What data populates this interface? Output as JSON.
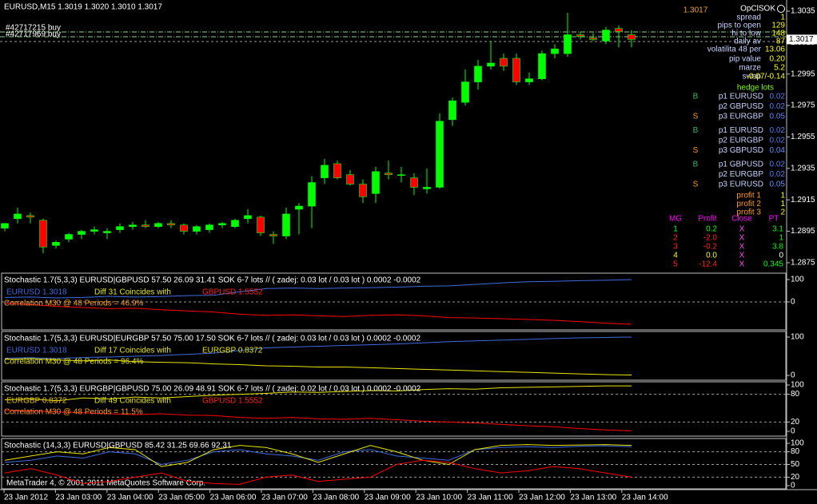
{
  "header": {
    "symbol_line": "EURUSD,M15  1.3019 1.3020 1.3010 1.3017",
    "orders": [
      "#42717215 buy",
      "#42717969 buy"
    ]
  },
  "price": {
    "current": 1.3017,
    "ylim": [
      1.28704,
      1.30421
    ],
    "ticks": [
      1.3035,
      1.3015,
      1.2995,
      1.2975,
      1.2955,
      1.2935,
      1.2915,
      1.2895,
      1.2875
    ]
  },
  "candles": {
    "up_color": "#00ff00",
    "down_color": "#ff0000",
    "open": [
      1.2897,
      1.2903,
      1.2905,
      1.2902,
      1.2886,
      1.289,
      1.2893,
      1.2895,
      1.2894,
      1.2896,
      1.2898,
      1.2899,
      1.2898,
      1.29,
      1.2899,
      1.2895,
      1.2896,
      1.2899,
      1.2898,
      1.2903,
      1.2904,
      1.2893,
      1.2892,
      1.2909,
      1.2911,
      1.2929,
      1.2938,
      1.2931,
      1.2925,
      1.2919,
      1.2932,
      1.2931,
      1.2929,
      1.2922,
      1.2923,
      1.2966,
      1.2977,
      1.299,
      1.3,
      1.3005,
      1.3005,
      1.299,
      1.2992,
      1.3008,
      1.3008,
      1.302,
      1.3018,
      1.3016,
      1.3024,
      1.302
    ],
    "high": [
      1.29,
      1.291,
      1.2907,
      1.2903,
      1.2889,
      1.2894,
      1.2896,
      1.2898,
      1.2897,
      1.29,
      1.2901,
      1.2902,
      1.2901,
      1.2902,
      1.29,
      1.2899,
      1.29,
      1.2901,
      1.2903,
      1.2909,
      1.2905,
      1.2895,
      1.291,
      1.2913,
      1.293,
      1.2941,
      1.294,
      1.2934,
      1.2928,
      1.2936,
      1.294,
      1.2936,
      1.2932,
      1.2935,
      1.297,
      1.298,
      1.2998,
      1.3004,
      1.3016,
      1.3008,
      1.3008,
      1.2996,
      1.301,
      1.3014,
      1.3034,
      1.3022,
      1.3021,
      1.3025,
      1.3026,
      1.3023
    ],
    "low": [
      1.2895,
      1.29,
      1.29,
      1.2881,
      1.2884,
      1.2888,
      1.289,
      1.2893,
      1.289,
      1.2894,
      1.2896,
      1.2897,
      1.2897,
      1.2897,
      1.2893,
      1.2893,
      1.2894,
      1.2897,
      1.2897,
      1.29,
      1.2892,
      1.2887,
      1.289,
      1.2893,
      1.2897,
      1.2925,
      1.2928,
      1.2924,
      1.2913,
      1.2913,
      1.2928,
      1.2926,
      1.2918,
      1.2919,
      1.2922,
      1.2962,
      1.2975,
      1.2985,
      1.2998,
      1.2997,
      1.2988,
      1.2988,
      1.2991,
      1.3005,
      1.3006,
      1.3017,
      1.3016,
      1.3014,
      1.3012,
      1.3012
    ],
    "close": [
      1.29,
      1.2906,
      1.2904,
      1.2885,
      1.2888,
      1.2893,
      1.2895,
      1.2896,
      1.2895,
      1.2898,
      1.2899,
      1.2898,
      1.29,
      1.2899,
      1.2895,
      1.2898,
      1.2899,
      1.29,
      1.2902,
      1.2905,
      1.2894,
      1.2892,
      1.2906,
      1.2911,
      1.2926,
      1.2937,
      1.2929,
      1.2925,
      1.2917,
      1.2933,
      1.2931,
      1.2931,
      1.2923,
      1.2923,
      1.2965,
      1.2978,
      1.299,
      1.3,
      1.3002,
      1.3,
      1.299,
      1.2992,
      1.3008,
      1.3011,
      1.302,
      1.3019,
      1.3017,
      1.3023,
      1.3022,
      1.3017
    ]
  },
  "info": {
    "title": "OpClSOK",
    "rows": [
      {
        "label": "spread",
        "value": "1"
      },
      {
        "label": "pips to open",
        "value": "129"
      },
      {
        "label": "hi to low",
        "value": "148"
      },
      {
        "label": "daily av",
        "value": "87"
      },
      {
        "label": "volatilita 48 per",
        "value": "13.06"
      },
      {
        "label": "pip value",
        "value": "0.20"
      },
      {
        "label": "marze",
        "value": "5.2"
      },
      {
        "label": "swap",
        "value": "-0.07/-0.14"
      }
    ],
    "hedge": {
      "title": "hedge lots",
      "groups": [
        {
          "buy": "B",
          "sell": "S",
          "rows": [
            {
              "pair": "p1 EURUSD",
              "lots": "0.02"
            },
            {
              "pair": "p2 GBPUSD",
              "lots": "0.02"
            },
            {
              "pair": "p3 EURGBP",
              "lots": "0.05"
            }
          ]
        },
        {
          "buy": "B",
          "sell": "S",
          "rows": [
            {
              "pair": "p1 EURUSD",
              "lots": "0.02"
            },
            {
              "pair": "p2 EURGBP",
              "lots": "0.02"
            },
            {
              "pair": "p3 GBPUSD",
              "lots": "0.04"
            }
          ]
        },
        {
          "buy": "B",
          "sell": "S",
          "rows": [
            {
              "pair": "p1 GBPUSD",
              "lots": "0.02"
            },
            {
              "pair": "p2 EURGBP",
              "lots": "0.02"
            },
            {
              "pair": "p3 EURUSD",
              "lots": "0.05"
            }
          ]
        }
      ]
    },
    "profits": [
      {
        "label": "profit 1",
        "value": "1"
      },
      {
        "label": "profit 2",
        "value": "1"
      },
      {
        "label": "profit 3",
        "value": "2"
      }
    ],
    "mg": {
      "header": [
        "MG",
        "Profit",
        "Close",
        "PT"
      ],
      "rows": [
        [
          "1",
          "0.2",
          "X",
          "3.1"
        ],
        [
          "2",
          "-2.0",
          "X",
          "1"
        ],
        [
          "3",
          "-0.2",
          "X",
          "3.8"
        ],
        [
          "4",
          "0.0",
          "X",
          "0"
        ],
        [
          "5",
          "-12.4",
          "X",
          "0.345"
        ]
      ]
    }
  },
  "panels": [
    {
      "title": "Stochastic 1.7(5,3,3) EURUSD|GBPUSD 57.50 26.09 31.41  SOK 6-7 lots  //  ( zadej: 0.03 lot / 0.03 lot ) 0.0002 -0.0002",
      "legend": [
        {
          "text": "EURUSD 1.3018",
          "color": "#4169e1"
        },
        {
          "text": "Diff 31 Coincides with",
          "color": "#e6e600"
        },
        {
          "text": "GBPUSD 1.5552",
          "color": "#ff2020"
        }
      ],
      "correlation": {
        "text": "Correlation M30 @ 48 Periods = 46.9%",
        "color": "#ff9c1a"
      },
      "ylim": [
        -100,
        100
      ],
      "yticks": [
        100,
        0
      ],
      "series": [
        {
          "color": "#4169e1",
          "values": [
            20,
            22,
            18,
            20,
            25,
            22,
            24,
            28,
            30,
            45,
            60,
            62,
            60,
            62,
            64,
            66,
            70,
            72,
            78,
            85,
            90,
            92,
            95,
            97,
            100
          ]
        },
        {
          "color": "#ff0000",
          "values": [
            -5,
            -12,
            -20,
            -25,
            -30,
            -28,
            -35,
            -40,
            -45,
            -55,
            -60,
            -58,
            -62,
            -65,
            -60,
            -58,
            -62,
            -70,
            -72,
            -75,
            -78,
            -82,
            -88,
            -95,
            -100
          ]
        }
      ]
    },
    {
      "title": "Stochastic 1.7(5,3,3) EURUSD|EURGBP 57.50 75.00 17.50  SOK 6-7 lots  //  ( zadej: 0.03 lot / 0.03 lot ) 0.0002 -0.0002",
      "legend": [
        {
          "text": "EURUSD 1.3018",
          "color": "#4169e1"
        },
        {
          "text": "Diff 17 Coincides with",
          "color": "#e6e600"
        },
        {
          "text": "EURGBP 0.8372",
          "color": "#e6e600"
        }
      ],
      "correlation": {
        "text": "Correlation M30 @ 48 Periods = 96.4%",
        "color": "#e6e600"
      },
      "ylim": [
        0,
        100
      ],
      "yticks": [
        100,
        0
      ],
      "series": [
        {
          "color": "#4169e1",
          "values": [
            45,
            46,
            44,
            47,
            48,
            50,
            52,
            55,
            58,
            65,
            72,
            74,
            76,
            78,
            80,
            82,
            85,
            88,
            90,
            92,
            94,
            96,
            98,
            99,
            100
          ]
        },
        {
          "color": "#e6e600",
          "values": [
            42,
            44,
            40,
            38,
            40,
            36,
            34,
            33,
            30,
            28,
            25,
            24,
            22,
            22,
            20,
            18,
            16,
            14,
            12,
            10,
            8,
            6,
            4,
            2,
            1
          ]
        }
      ]
    },
    {
      "title": "Stochastic 1.7(5,3,3) EURGBP|GBPUSD 75.00 26.09 48.91  SOK 6-7 lots  //  ( zadej: 0.02 lot / 0.03 lot ) 0.0002 -0.0002",
      "legend": [
        {
          "text": "EURGBP 0.8372",
          "color": "#e6c200"
        },
        {
          "text": "Diff 49 Coincides with",
          "color": "#e6e600"
        },
        {
          "text": "GBPUSD 1.5552",
          "color": "#ff2020"
        }
      ],
      "correlation": {
        "text": "Correlation M30 @ 48 Periods = 11.5%",
        "color": "#ff9c1a"
      },
      "ylim": [
        0,
        100
      ],
      "yticks": [
        100,
        80,
        20,
        0
      ],
      "series": [
        {
          "color": "#e6e600",
          "values": [
            68,
            70,
            66,
            72,
            70,
            74,
            72,
            75,
            78,
            80,
            82,
            85,
            84,
            86,
            88,
            87,
            90,
            92,
            91,
            94,
            95,
            96,
            97,
            98,
            98
          ]
        },
        {
          "color": "#ff0000",
          "values": [
            45,
            44,
            42,
            40,
            38,
            36,
            38,
            35,
            34,
            30,
            28,
            30,
            27,
            26,
            28,
            25,
            22,
            20,
            18,
            15,
            12,
            10,
            6,
            3,
            1
          ]
        }
      ]
    },
    {
      "title": "Stochastic (14,3,3) EURUSD|GBPUSD 85.42 31.25 69.66 92.31",
      "footer": "MetaTrader 4, © 2001-2011 MetaQuotes Software Corp.",
      "ylim": [
        0,
        100
      ],
      "yticks": [
        100,
        80,
        50,
        20,
        0
      ],
      "series": [
        {
          "color": "#4169e1",
          "values": [
            55,
            60,
            70,
            65,
            80,
            75,
            50,
            60,
            80,
            85,
            75,
            70,
            60,
            80,
            85,
            70,
            65,
            60,
            85,
            90,
            92,
            90,
            93,
            94,
            92
          ]
        },
        {
          "color": "#e6e600",
          "values": [
            60,
            70,
            80,
            75,
            90,
            85,
            45,
            55,
            85,
            95,
            90,
            75,
            55,
            75,
            95,
            80,
            60,
            50,
            85,
            95,
            97,
            95,
            96,
            97,
            95
          ]
        },
        {
          "color": "#ff0000",
          "values": [
            30,
            40,
            25,
            5,
            10,
            20,
            30,
            10,
            5,
            3,
            20,
            25,
            10,
            15,
            20,
            50,
            60,
            55,
            40,
            30,
            35,
            45,
            40,
            30,
            20
          ]
        }
      ]
    }
  ],
  "time_axis": [
    "23 Jan 2012",
    "23 Jan 03:00",
    "23 Jan 04:00",
    "23 Jan 05:00",
    "23 Jan 06:00",
    "23 Jan 07:00",
    "23 Jan 08:00",
    "23 Jan 09:00",
    "23 Jan 10:00",
    "23 Jan 11:00",
    "23 Jan 12:00",
    "23 Jan 13:00",
    "23 Jan 14:00"
  ]
}
